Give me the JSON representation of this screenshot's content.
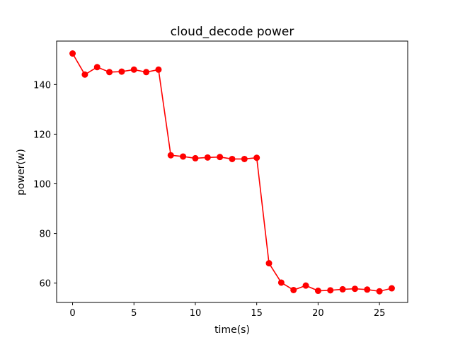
{
  "chart_data": {
    "type": "line",
    "title": "cloud_decode power",
    "xlabel": "time(s)",
    "ylabel": "power(w)",
    "xlim": [
      -1.3,
      27.3
    ],
    "ylim": [
      52.2,
      157.5
    ],
    "x_ticks": [
      0,
      5,
      10,
      15,
      20,
      25
    ],
    "y_ticks": [
      60,
      80,
      100,
      120,
      140
    ],
    "grid": false,
    "legend": "none",
    "series": [
      {
        "color": "#ff0000",
        "marker": "circle",
        "x": [
          0,
          1,
          2,
          3,
          4,
          5,
          6,
          7,
          8,
          9,
          10,
          11,
          12,
          13,
          14,
          15,
          16,
          17,
          18,
          19,
          20,
          21,
          22,
          23,
          24,
          25,
          26
        ],
        "y": [
          152.5,
          144.0,
          147.0,
          145.0,
          145.2,
          146.0,
          145.0,
          146.0,
          111.5,
          111.0,
          110.3,
          110.6,
          110.8,
          110.0,
          110.0,
          110.5,
          68.0,
          60.2,
          57.2,
          59.0,
          56.9,
          57.1,
          57.5,
          57.7,
          57.4,
          56.7,
          57.9
        ]
      }
    ]
  }
}
